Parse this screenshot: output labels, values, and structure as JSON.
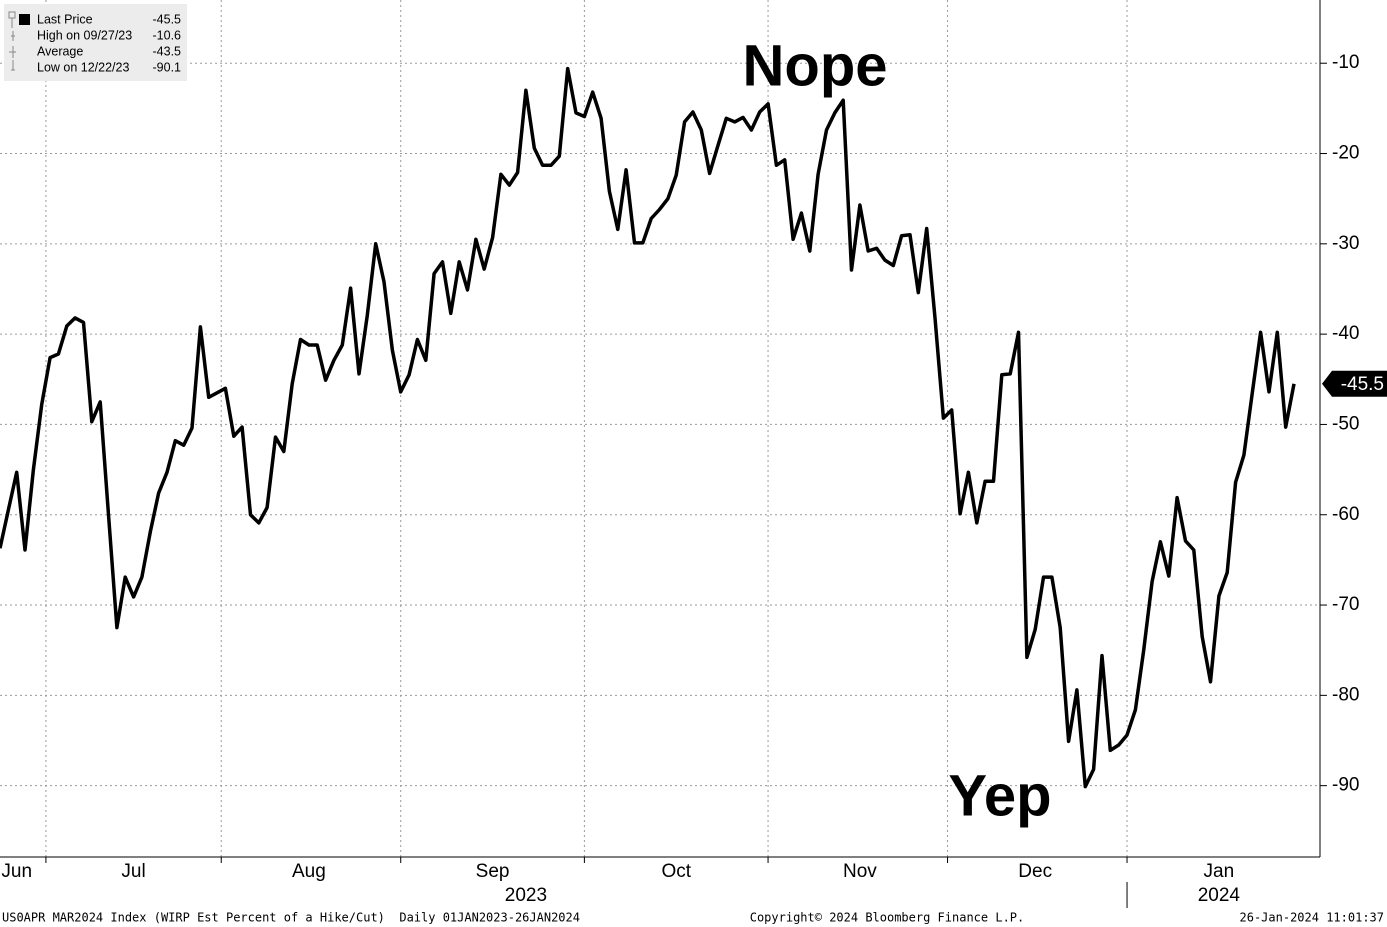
{
  "chart_data": {
    "type": "line",
    "categories": [
      null,
      null,
      "Jun",
      null,
      null,
      null,
      null,
      null,
      null,
      null,
      null,
      null,
      null,
      null,
      null,
      null,
      "Jul",
      null,
      null,
      null,
      null,
      null,
      null,
      null,
      null,
      null,
      null,
      null,
      null,
      null,
      null,
      null,
      null,
      null,
      null,
      null,
      null,
      "Aug",
      null,
      null,
      null,
      null,
      null,
      null,
      null,
      null,
      null,
      null,
      null,
      null,
      null,
      null,
      null,
      null,
      null,
      null,
      null,
      null,
      null,
      "Sep",
      null,
      null,
      null,
      null,
      null,
      null,
      null,
      null,
      null,
      null,
      null,
      null,
      null,
      null,
      null,
      null,
      null,
      null,
      null,
      null,
      null,
      "Oct",
      null,
      null,
      null,
      null,
      null,
      null,
      null,
      null,
      null,
      null,
      null,
      null,
      null,
      null,
      null,
      null,
      null,
      null,
      null,
      null,
      null,
      "Nov",
      null,
      null,
      null,
      null,
      null,
      null,
      null,
      null,
      null,
      null,
      null,
      null,
      null,
      null,
      null,
      null,
      null,
      null,
      null,
      null,
      "Dec",
      null,
      null,
      null,
      null,
      null,
      null,
      null,
      null,
      null,
      null,
      null,
      null,
      null,
      null,
      null,
      null,
      null,
      null,
      null,
      null,
      null,
      "Jan",
      null,
      null,
      null,
      null,
      null,
      null,
      null,
      null,
      null
    ],
    "years": [
      "2023",
      "2024"
    ],
    "series": [
      {
        "name": "Last Price",
        "color": "#000000",
        "values": [
          -63.7,
          -59.5,
          -55.3,
          -63.9,
          -55,
          -47.8,
          -42.6,
          -42.2,
          -39.1,
          -38.2,
          -38.7,
          -49.7,
          -47.5,
          -60,
          -72.5,
          -66.9,
          -69.1,
          -66.9,
          -61.9,
          -57.6,
          -55.3,
          -51.8,
          -52.3,
          -50.4,
          -39.2,
          -47,
          -46.5,
          -46,
          -51.3,
          -50.3,
          -60,
          -60.9,
          -59.2,
          -51.4,
          -53,
          -45.5,
          -40.6,
          -41.2,
          -41.2,
          -45.1,
          -42.9,
          -41.2,
          -34.9,
          -44.4,
          -37.9,
          -30,
          -34.2,
          -41.8,
          -46.4,
          -44.5,
          -40.6,
          -42.9,
          -33.3,
          -32,
          -37.7,
          -32,
          -35.1,
          -29.5,
          -32.8,
          -29.3,
          -22.3,
          -23.5,
          -22.1,
          -13,
          -19.4,
          -21.3,
          -21.3,
          -20.3,
          -10.6,
          -15.5,
          -15.9,
          -13.2,
          -16.1,
          -24.2,
          -28.4,
          -21.8,
          -29.9,
          -29.9,
          -27.2,
          -26.2,
          -25,
          -22.4,
          -16.5,
          -15.4,
          -17.4,
          -22.2,
          -19.1,
          -16.1,
          -16.5,
          -16,
          -17.4,
          -15.4,
          -14.5,
          -21.3,
          -20.7,
          -29.5,
          -26.6,
          -30.8,
          -22.3,
          -17.4,
          -15.5,
          -14.1,
          -32.9,
          -25.7,
          -30.8,
          -30.5,
          -31.8,
          -32.4,
          -29.1,
          -29,
          -35.4,
          -28.3,
          -38.2,
          -49.3,
          -48.4,
          -59.9,
          -55.3,
          -60.9,
          -56.3,
          -56.3,
          -44.5,
          -44.4,
          -39.8,
          -75.8,
          -72.7,
          -66.9,
          -66.9,
          -72.5,
          -85.1,
          -79.4,
          -90.1,
          -88.2,
          -75.6,
          -86.1,
          -85.5,
          -84.4,
          -81.6,
          -75,
          -67.4,
          -63,
          -66.8,
          -58.1,
          -62.9,
          -63.9,
          -73.5,
          -78.5,
          -69,
          -66.4,
          -56.4,
          -53.4,
          -46.5,
          -39.8,
          -46.4,
          -39.8,
          -50.3,
          -45.5
        ]
      }
    ],
    "ylim": [
      -97.9,
      -3.0
    ],
    "yticks": [
      -10,
      -20,
      -30,
      -40,
      -50,
      -60,
      -70,
      -80,
      -90
    ],
    "grid": true,
    "legend": [
      {
        "label": "Last Price",
        "value": -45.5
      },
      {
        "label": "High on 09/27/23",
        "value": -10.6
      },
      {
        "label": "Average",
        "value": -43.5
      },
      {
        "label": "Low on 12/22/23",
        "value": -90.1
      }
    ],
    "annotations": [
      {
        "text": "Nope",
        "color": "#e8202a"
      },
      {
        "text": "Yep",
        "color": "#2aa84a"
      }
    ],
    "footer": {
      "left": "US0APR MAR2024 Index (WIRP Est Percent of a Hike/Cut)  Daily 01JAN2023-26JAN2024",
      "center": "Copyright© 2024 Bloomberg Finance L.P.",
      "right": "26-Jan-2024 11:01:37"
    }
  }
}
